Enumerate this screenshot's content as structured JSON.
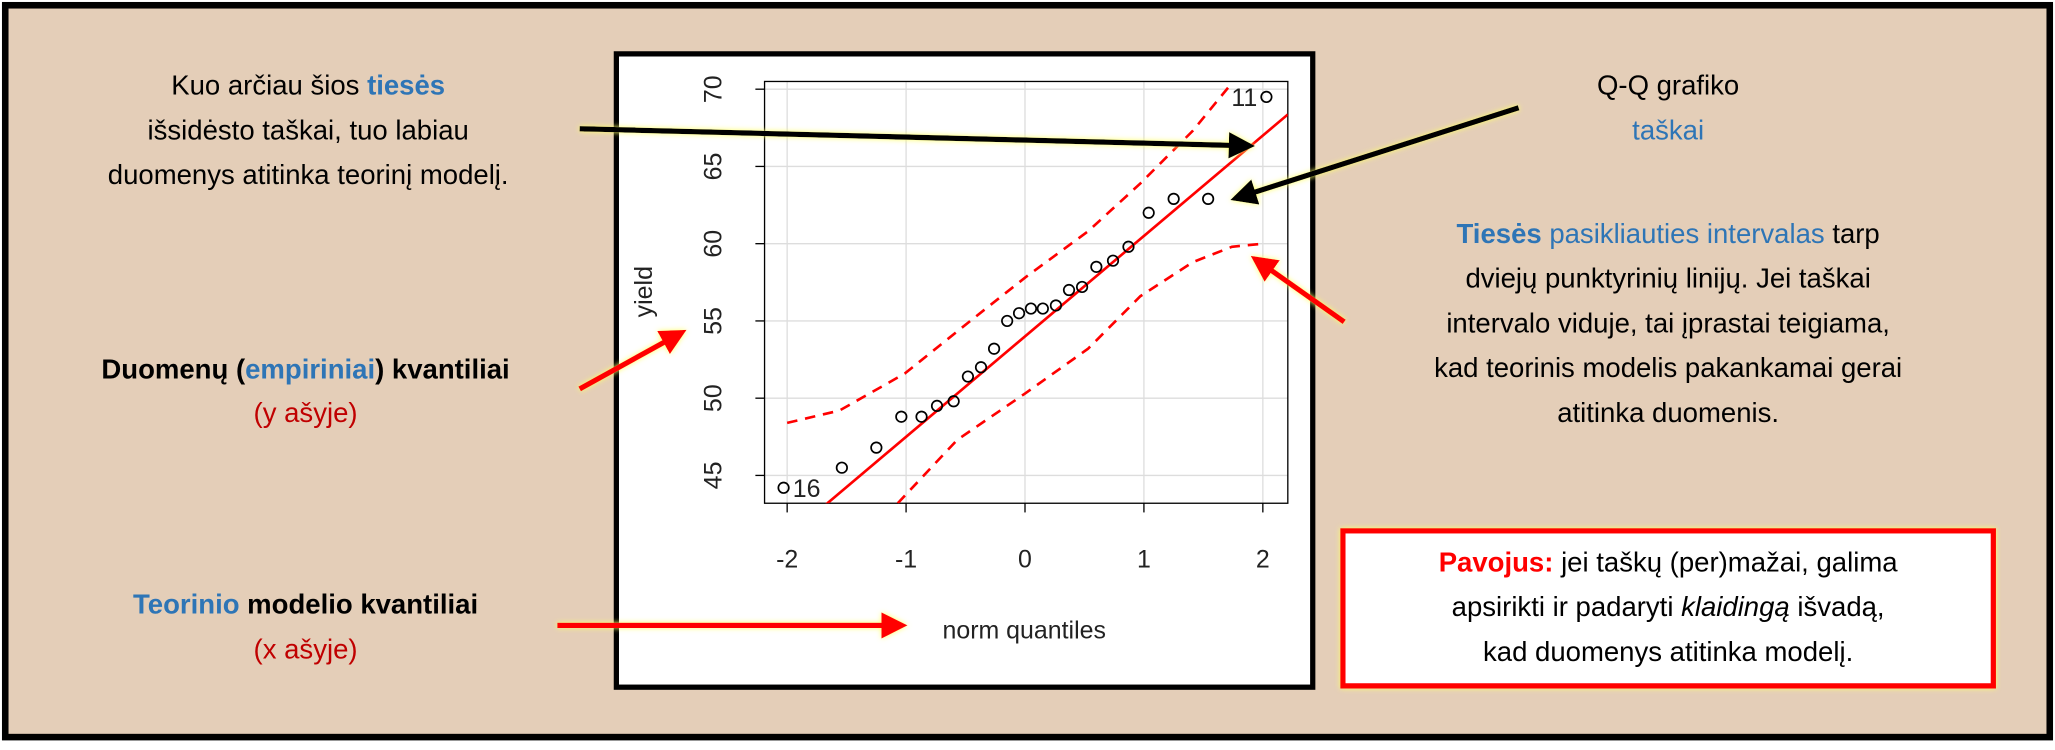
{
  "chart_data": {
    "type": "qqplot",
    "x_label": "norm quantiles",
    "y_label": "yield",
    "xlim": [
      -2.19,
      2.21
    ],
    "ylim": [
      43.2,
      70.5
    ],
    "xticks": [
      -2,
      -1,
      0,
      1,
      2
    ],
    "yticks": [
      45,
      50,
      55,
      60,
      65,
      70
    ],
    "grid": true,
    "point_color": "#000000",
    "line_color": "#ff0000",
    "x": [
      -2.03,
      -1.54,
      -1.25,
      -1.04,
      -0.87,
      -0.74,
      -0.6,
      -0.48,
      -0.37,
      -0.26,
      -0.15,
      -0.05,
      0.05,
      0.15,
      0.26,
      0.37,
      0.48,
      0.6,
      0.74,
      0.87,
      1.04,
      1.25,
      1.54,
      2.03
    ],
    "values": [
      44.2,
      45.5,
      46.8,
      48.8,
      48.8,
      49.5,
      49.8,
      51.4,
      52.0,
      53.2,
      55.0,
      55.5,
      55.8,
      55.8,
      56.0,
      57.0,
      57.2,
      58.5,
      58.9,
      59.8,
      62.0,
      62.9,
      62.9,
      69.5
    ],
    "point_labels": [
      "16",
      null,
      null,
      null,
      null,
      null,
      null,
      null,
      null,
      null,
      null,
      null,
      null,
      null,
      null,
      null,
      null,
      null,
      null,
      null,
      null,
      null,
      null,
      "11"
    ],
    "reference_line": {
      "intercept": 54.0,
      "slope": 6.5
    },
    "band_upper": {
      "x": [
        -2.0,
        -1.56,
        -1.01,
        -0.46,
        0.0,
        0.53,
        0.97,
        1.41,
        1.74
      ],
      "y": [
        48.4,
        49.2,
        51.6,
        55.0,
        57.8,
        60.8,
        63.9,
        67.3,
        70.4
      ]
    },
    "band_lower": {
      "x": [
        -1.07,
        -0.57,
        0.0,
        0.53,
        0.97,
        1.41,
        1.74,
        2.0
      ],
      "y": [
        43.2,
        47.3,
        50.3,
        53.2,
        56.6,
        58.8,
        59.8,
        60.0
      ]
    },
    "annotations": [
      {
        "lines": [
          [
            {
              "text": "Kuo arčiau šios "
            },
            {
              "text": "tiesės",
              "color": "#2e75b6",
              "bold": true
            }
          ],
          [
            {
              "text": "išsidėsto taškai, tuo labiau"
            }
          ],
          [
            {
              "text": "duomenys atitinka teorinį modelį."
            }
          ]
        ]
      },
      {
        "lines": [
          [
            {
              "text": "Q-Q grafiko"
            }
          ],
          [
            {
              "text": "taškai",
              "color": "#2e75b6"
            }
          ]
        ]
      },
      {
        "lines": [
          [
            {
              "text": "Tiesės",
              "color": "#2e75b6",
              "bold": true
            },
            {
              "text": " pasikliauties intervalas",
              "color": "#2e75b6"
            },
            {
              "text": " tarp"
            }
          ],
          [
            {
              "text": "dviejų punktyrinių linijų. Jei taškai"
            }
          ],
          [
            {
              "text": "intervalo viduje, tai įprastai teigiama,"
            }
          ],
          [
            {
              "text": "kad teorinis modelis pakankamai gerai"
            }
          ],
          [
            {
              "text": "atitinka duomenis."
            }
          ]
        ]
      },
      {
        "lines": [
          [
            {
              "text": "Duomenų (",
              "bold": true
            },
            {
              "text": "empiriniai",
              "color": "#2e75b6",
              "bold": true
            },
            {
              "text": ") kvantiliai",
              "bold": true
            }
          ],
          [
            {
              "text": "(y ašyje)",
              "color": "#c00000"
            }
          ]
        ]
      },
      {
        "lines": [
          [
            {
              "text": "Teorinio",
              "color": "#2e75b6",
              "bold": true
            },
            {
              "text": " modelio kvantiliai",
              "bold": true
            }
          ],
          [
            {
              "text": "(x ašyje)",
              "color": "#c00000"
            }
          ]
        ]
      },
      {
        "lines": [
          [
            {
              "text": "Pavojus:",
              "color": "#ff0000",
              "bold": true
            },
            {
              "text": " jei taškų (per)mažai, galima"
            }
          ],
          [
            {
              "text": "apsirikti ir padaryti "
            },
            {
              "text": "klaidingą",
              "italic": true
            },
            {
              "text": " išvadą,"
            }
          ],
          [
            {
              "text": "kad duomenys atitinka modelį."
            }
          ]
        ]
      }
    ]
  }
}
